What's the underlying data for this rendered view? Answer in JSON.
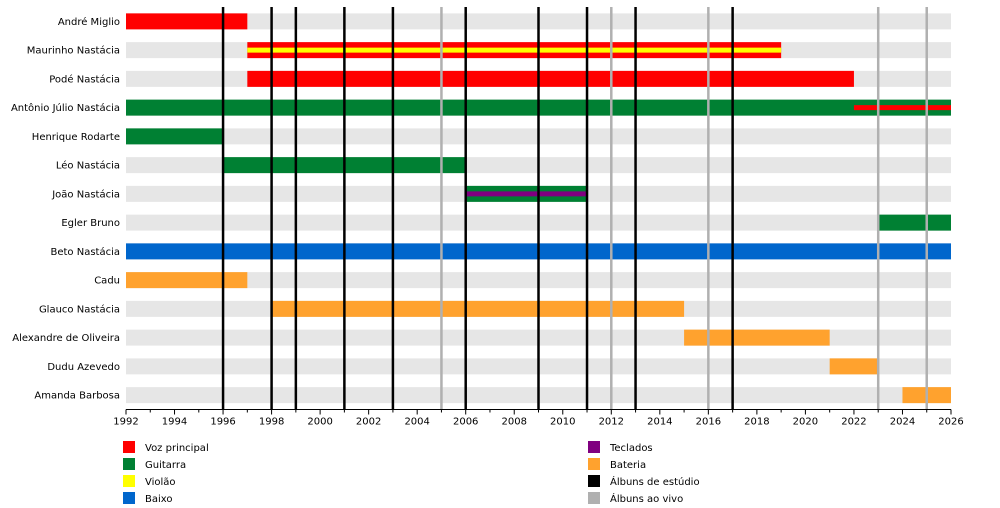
{
  "chart_data": {
    "type": "timeline",
    "x_range": [
      1992,
      2026
    ],
    "x_ticks": [
      1992,
      1994,
      1996,
      1998,
      2000,
      2002,
      2004,
      2006,
      2008,
      2010,
      2012,
      2014,
      2016,
      2018,
      2020,
      2022,
      2024,
      2026
    ],
    "members": [
      "André Miglio",
      "Maurinho Nastácia",
      "Podé Nastácia",
      "Antônio Júlio Nastácia",
      "Henrique Rodarte",
      "Léo Nastácia",
      "João Nastácia",
      "Egler Bruno",
      "Beto Nastácia",
      "Cadu",
      "Glauco Nastácia",
      "Alexandre de Oliveira",
      "Dudu Azevedo",
      "Amanda Barbosa"
    ],
    "roles": {
      "vocals": {
        "label": "Voz principal",
        "color": "#ff0000"
      },
      "guitar": {
        "label": "Guitarra",
        "color": "#008033"
      },
      "acoustic": {
        "label": "Violão",
        "color": "#ffff00"
      },
      "bass": {
        "label": "Baixo",
        "color": "#0066cc"
      },
      "keys": {
        "label": "Teclados",
        "color": "#800080"
      },
      "drums": {
        "label": "Bateria",
        "color": "#ffa22e"
      },
      "studio": {
        "label": "Álbuns de estúdio",
        "color": "#000000"
      },
      "live": {
        "label": "Álbuns ao vivo",
        "color": "#b0b0b0"
      }
    },
    "bars": [
      {
        "member": 0,
        "role": "vocals",
        "start": 1992,
        "end": 1997
      },
      {
        "member": 1,
        "role": "vocals",
        "start": 1997,
        "end": 2019
      },
      {
        "member": 1,
        "role": "acoustic",
        "start": 1997,
        "end": 2019,
        "inner": true
      },
      {
        "member": 2,
        "role": "vocals",
        "start": 1997,
        "end": 2022
      },
      {
        "member": 3,
        "role": "guitar",
        "start": 1992,
        "end": 2026
      },
      {
        "member": 3,
        "role": "vocals",
        "start": 2022,
        "end": 2026,
        "inner": true
      },
      {
        "member": 4,
        "role": "guitar",
        "start": 1992,
        "end": 1996
      },
      {
        "member": 5,
        "role": "guitar",
        "start": 1996,
        "end": 2006
      },
      {
        "member": 6,
        "role": "guitar",
        "start": 2006,
        "end": 2011
      },
      {
        "member": 6,
        "role": "keys",
        "start": 2006,
        "end": 2011,
        "inner": true
      },
      {
        "member": 7,
        "role": "guitar",
        "start": 2023,
        "end": 2026
      },
      {
        "member": 8,
        "role": "bass",
        "start": 1992,
        "end": 2026
      },
      {
        "member": 9,
        "role": "drums",
        "start": 1992,
        "end": 1997
      },
      {
        "member": 10,
        "role": "drums",
        "start": 1998,
        "end": 2015
      },
      {
        "member": 11,
        "role": "drums",
        "start": 2015,
        "end": 2021
      },
      {
        "member": 12,
        "role": "drums",
        "start": 2021,
        "end": 2023
      },
      {
        "member": 13,
        "role": "drums",
        "start": 2024,
        "end": 2026
      }
    ],
    "studio_albums": [
      1996,
      1998,
      1999,
      2001,
      2003,
      2006,
      2009,
      2011,
      2013,
      2017
    ],
    "live_albums": [
      2005,
      2012,
      2016,
      2023,
      2025
    ],
    "legend": {
      "left": [
        "vocals",
        "guitar",
        "acoustic",
        "bass"
      ],
      "right": [
        "keys",
        "drums",
        "studio",
        "live"
      ]
    },
    "legend_placement": "bottom",
    "grid": true
  }
}
